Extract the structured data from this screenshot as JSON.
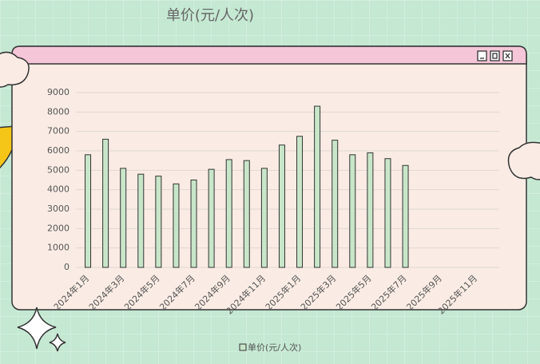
{
  "chart_data": {
    "type": "bar",
    "title": "单价(元/人次)",
    "categories": [
      "2024年1月",
      null,
      "2024年3月",
      null,
      "2024年5月",
      null,
      "2024年7月",
      null,
      "2024年9月",
      null,
      "2024年11月",
      null,
      "2025年1月",
      null,
      "2025年3月",
      null,
      "2025年5月",
      null,
      "2025年7月",
      null,
      "2025年9月",
      null,
      "2025年11月",
      null
    ],
    "series": [
      {
        "name": "单价(元/人次)",
        "color": "#c8e6c9",
        "values": [
          5800,
          6600,
          5100,
          4800,
          4700,
          4300,
          4500,
          5050,
          5550,
          5500,
          5100,
          6300,
          6750,
          8300,
          6550,
          5800,
          5900,
          5600,
          5250,
          null,
          null,
          null,
          null,
          null
        ]
      }
    ],
    "ylim": [
      0,
      9000
    ],
    "yticks": [
      0,
      1000,
      2000,
      3000,
      4000,
      5000,
      6000,
      7000,
      8000,
      9000
    ],
    "grid": true
  }
}
